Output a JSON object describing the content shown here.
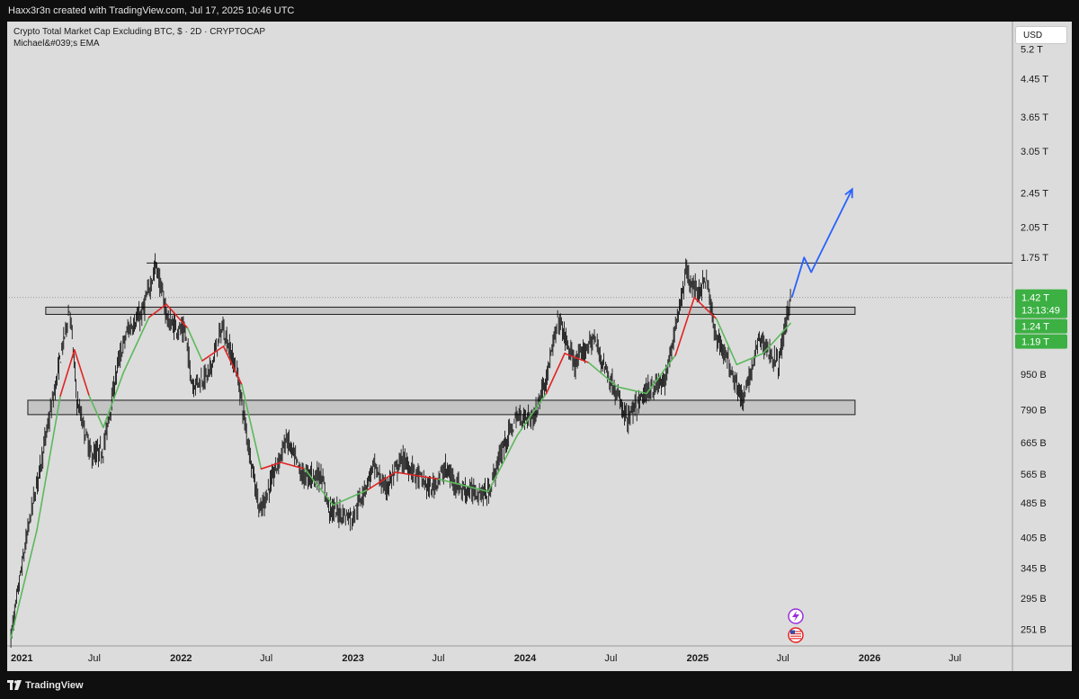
{
  "header": {
    "text": "Haxx3r3n created with TradingView.com, Jul 17, 2025 10:46 UTC"
  },
  "legend": {
    "line1": "Crypto Total Market Cap Excluding BTC, $ · 2D · CRYPTOCAP",
    "line2": "Michael&#039;s EMA"
  },
  "currency_button": "USD",
  "footer": {
    "brand": "TradingView"
  },
  "colors": {
    "background": "#dcdcdc",
    "candle": "#000000",
    "ema_up": "#5cb85c",
    "ema_down": "#e02424",
    "zone_fill": "#c4c4c4",
    "projection": "#2962ff",
    "price_tag": "#3cb043"
  },
  "chart_data": {
    "type": "line",
    "y_scale": "log",
    "ylim": [
      230,
      6000
    ],
    "xlim": [
      "2021-01-01",
      "2026-10-31"
    ],
    "x_ticks": [
      {
        "date": "2021-01-01",
        "label": "2021",
        "bold": true
      },
      {
        "date": "2021-07-01",
        "label": "Jul",
        "bold": false
      },
      {
        "date": "2022-01-01",
        "label": "2022",
        "bold": true
      },
      {
        "date": "2022-07-01",
        "label": "Jul",
        "bold": false
      },
      {
        "date": "2023-01-01",
        "label": "2023",
        "bold": true
      },
      {
        "date": "2023-07-01",
        "label": "Jul",
        "bold": false
      },
      {
        "date": "2024-01-01",
        "label": "2024",
        "bold": true
      },
      {
        "date": "2024-07-01",
        "label": "Jul",
        "bold": false
      },
      {
        "date": "2025-01-01",
        "label": "2025",
        "bold": true
      },
      {
        "date": "2025-07-01",
        "label": "Jul",
        "bold": false
      },
      {
        "date": "2026-01-01",
        "label": "2026",
        "bold": true
      },
      {
        "date": "2026-07-01",
        "label": "Jul",
        "bold": false
      }
    ],
    "y_ticks": [
      {
        "value": 5200,
        "label": "5.2 T"
      },
      {
        "value": 4450,
        "label": "4.45 T"
      },
      {
        "value": 3650,
        "label": "3.65 T"
      },
      {
        "value": 3050,
        "label": "3.05 T"
      },
      {
        "value": 2450,
        "label": "2.45 T"
      },
      {
        "value": 2050,
        "label": "2.05 T"
      },
      {
        "value": 1750,
        "label": "1.75 T"
      },
      {
        "value": 950,
        "label": "950 B"
      },
      {
        "value": 790,
        "label": "790 B"
      },
      {
        "value": 665,
        "label": "665 B"
      },
      {
        "value": 565,
        "label": "565 B"
      },
      {
        "value": 485,
        "label": "485 B"
      },
      {
        "value": 405,
        "label": "405 B"
      },
      {
        "value": 345,
        "label": "345 B"
      },
      {
        "value": 295,
        "label": "295 B"
      },
      {
        "value": 251,
        "label": "251 B"
      }
    ],
    "price_tags": [
      {
        "value": 1420,
        "label": "1.42 T",
        "sub": "13:13:49"
      },
      {
        "value": 1240,
        "label": "1.24 T"
      },
      {
        "value": 1190,
        "label": "1.19 T"
      }
    ],
    "resistance_line": {
      "start": "2021-10-20",
      "end": "2026-10-31",
      "value": 1700
    },
    "current_price_line": 1420,
    "zones": [
      {
        "start": "2021-03-20",
        "end": "2025-12-01",
        "low": 1300,
        "high": 1350
      },
      {
        "start": "2021-02-10",
        "end": "2025-12-01",
        "low": 770,
        "high": 830
      }
    ],
    "projection": [
      {
        "date": "2025-07-20",
        "value": 1420
      },
      {
        "date": "2025-08-15",
        "value": 1750
      },
      {
        "date": "2025-08-30",
        "value": 1620
      },
      {
        "date": "2025-11-25",
        "value": 2500
      }
    ],
    "price_path": [
      {
        "date": "2021-01-05",
        "value": 240
      },
      {
        "date": "2021-01-25",
        "value": 330
      },
      {
        "date": "2021-02-15",
        "value": 450
      },
      {
        "date": "2021-03-10",
        "value": 600
      },
      {
        "date": "2021-04-10",
        "value": 900
      },
      {
        "date": "2021-05-10",
        "value": 1350
      },
      {
        "date": "2021-05-25",
        "value": 830
      },
      {
        "date": "2021-06-25",
        "value": 620
      },
      {
        "date": "2021-07-20",
        "value": 640
      },
      {
        "date": "2021-08-20",
        "value": 1000
      },
      {
        "date": "2021-09-10",
        "value": 1200
      },
      {
        "date": "2021-10-10",
        "value": 1300
      },
      {
        "date": "2021-11-09",
        "value": 1690
      },
      {
        "date": "2021-12-05",
        "value": 1250
      },
      {
        "date": "2022-01-10",
        "value": 1180
      },
      {
        "date": "2022-01-25",
        "value": 900
      },
      {
        "date": "2022-03-01",
        "value": 950
      },
      {
        "date": "2022-03-30",
        "value": 1220
      },
      {
        "date": "2022-05-01",
        "value": 950
      },
      {
        "date": "2022-05-20",
        "value": 700
      },
      {
        "date": "2022-06-18",
        "value": 460
      },
      {
        "date": "2022-07-05",
        "value": 520
      },
      {
        "date": "2022-08-13",
        "value": 680
      },
      {
        "date": "2022-09-15",
        "value": 560
      },
      {
        "date": "2022-10-25",
        "value": 560
      },
      {
        "date": "2022-11-12",
        "value": 470
      },
      {
        "date": "2022-12-31",
        "value": 450
      },
      {
        "date": "2023-02-15",
        "value": 590
      },
      {
        "date": "2023-03-10",
        "value": 520
      },
      {
        "date": "2023-04-15",
        "value": 610
      },
      {
        "date": "2023-06-15",
        "value": 520
      },
      {
        "date": "2023-07-15",
        "value": 580
      },
      {
        "date": "2023-08-20",
        "value": 520
      },
      {
        "date": "2023-10-15",
        "value": 510
      },
      {
        "date": "2023-11-15",
        "value": 650
      },
      {
        "date": "2023-12-15",
        "value": 760
      },
      {
        "date": "2024-01-20",
        "value": 760
      },
      {
        "date": "2024-02-20",
        "value": 980
      },
      {
        "date": "2024-03-12",
        "value": 1270
      },
      {
        "date": "2024-04-15",
        "value": 1000
      },
      {
        "date": "2024-05-25",
        "value": 1150
      },
      {
        "date": "2024-06-25",
        "value": 950
      },
      {
        "date": "2024-08-05",
        "value": 750
      },
      {
        "date": "2024-09-15",
        "value": 870
      },
      {
        "date": "2024-10-25",
        "value": 920
      },
      {
        "date": "2024-11-20",
        "value": 1300
      },
      {
        "date": "2024-12-08",
        "value": 1620
      },
      {
        "date": "2025-01-01",
        "value": 1450
      },
      {
        "date": "2025-01-20",
        "value": 1580
      },
      {
        "date": "2025-02-05",
        "value": 1200
      },
      {
        "date": "2025-03-10",
        "value": 1000
      },
      {
        "date": "2025-04-08",
        "value": 820
      },
      {
        "date": "2025-05-12",
        "value": 1150
      },
      {
        "date": "2025-06-22",
        "value": 1000
      },
      {
        "date": "2025-07-17",
        "value": 1420
      }
    ],
    "ema_path": [
      {
        "date": "2021-01-05",
        "value": 240,
        "trend": "up"
      },
      {
        "date": "2021-03-01",
        "value": 420,
        "trend": "up"
      },
      {
        "date": "2021-04-20",
        "value": 850,
        "trend": "up"
      },
      {
        "date": "2021-05-20",
        "value": 1080,
        "trend": "down"
      },
      {
        "date": "2021-06-20",
        "value": 850,
        "trend": "down"
      },
      {
        "date": "2021-07-20",
        "value": 720,
        "trend": "up"
      },
      {
        "date": "2021-09-01",
        "value": 960,
        "trend": "up"
      },
      {
        "date": "2021-10-25",
        "value": 1280,
        "trend": "up"
      },
      {
        "date": "2021-12-01",
        "value": 1370,
        "trend": "down"
      },
      {
        "date": "2022-01-15",
        "value": 1210,
        "trend": "down"
      },
      {
        "date": "2022-02-15",
        "value": 1020,
        "trend": "up"
      },
      {
        "date": "2022-04-01",
        "value": 1100,
        "trend": "down"
      },
      {
        "date": "2022-05-10",
        "value": 900,
        "trend": "down"
      },
      {
        "date": "2022-06-20",
        "value": 580,
        "trend": "up"
      },
      {
        "date": "2022-08-01",
        "value": 600,
        "trend": "down"
      },
      {
        "date": "2022-09-20",
        "value": 580,
        "trend": "down"
      },
      {
        "date": "2022-11-20",
        "value": 480,
        "trend": "up"
      },
      {
        "date": "2023-02-01",
        "value": 520,
        "trend": "up"
      },
      {
        "date": "2023-04-01",
        "value": 570,
        "trend": "down"
      },
      {
        "date": "2023-07-01",
        "value": 550,
        "trend": "down"
      },
      {
        "date": "2023-10-15",
        "value": 515,
        "trend": "up"
      },
      {
        "date": "2023-12-15",
        "value": 690,
        "trend": "up"
      },
      {
        "date": "2024-02-15",
        "value": 860,
        "trend": "up"
      },
      {
        "date": "2024-03-25",
        "value": 1060,
        "trend": "down"
      },
      {
        "date": "2024-05-15",
        "value": 1010,
        "trend": "down"
      },
      {
        "date": "2024-07-15",
        "value": 890,
        "trend": "up"
      },
      {
        "date": "2024-09-15",
        "value": 860,
        "trend": "up"
      },
      {
        "date": "2024-11-15",
        "value": 1050,
        "trend": "up"
      },
      {
        "date": "2024-12-25",
        "value": 1420,
        "trend": "down"
      },
      {
        "date": "2025-02-10",
        "value": 1270,
        "trend": "down"
      },
      {
        "date": "2025-03-25",
        "value": 1000,
        "trend": "up"
      },
      {
        "date": "2025-05-20",
        "value": 1060,
        "trend": "up"
      },
      {
        "date": "2025-07-17",
        "value": 1240,
        "trend": "up"
      }
    ]
  }
}
